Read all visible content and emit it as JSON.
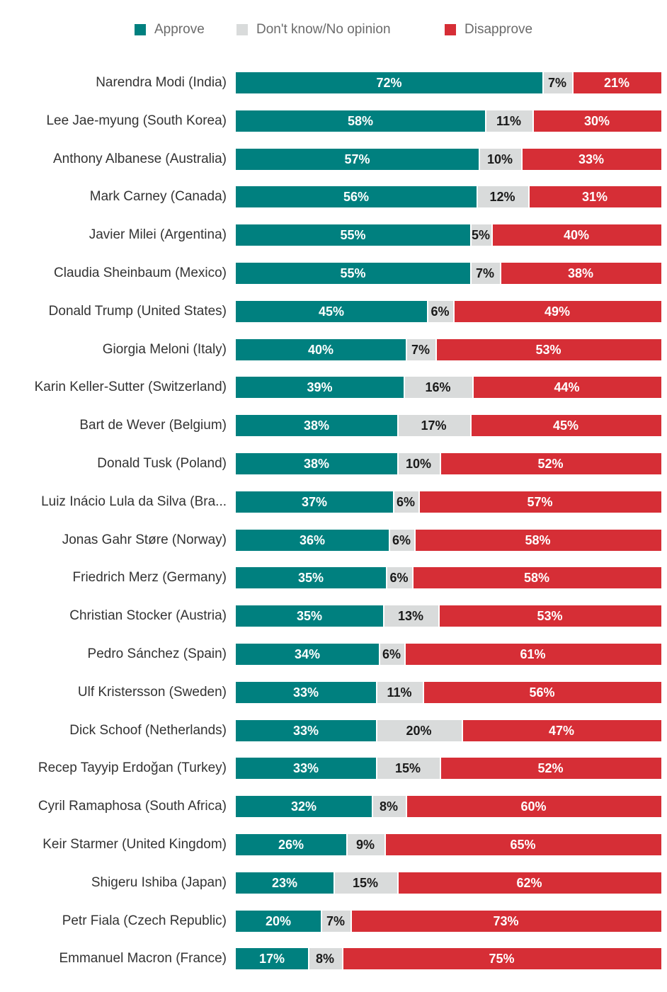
{
  "legend": [
    {
      "label": "Approve",
      "color": "#00807f"
    },
    {
      "label": "Don't know/No opinion",
      "color": "#d9dbdb"
    },
    {
      "label": "Disapprove",
      "color": "#d62e36"
    }
  ],
  "chart_data": {
    "type": "bar",
    "orientation": "horizontal",
    "stacked": true,
    "unit": "%",
    "categories": [
      "Narendra Modi (India)",
      "Lee Jae-myung (South Korea)",
      "Anthony Albanese (Australia)",
      "Mark Carney (Canada)",
      "Javier Milei (Argentina)",
      "Claudia Sheinbaum (Mexico)",
      "Donald Trump (United States)",
      "Giorgia Meloni (Italy)",
      "Karin Keller-Sutter (Switzerland)",
      "Bart de Wever (Belgium)",
      "Donald Tusk (Poland)",
      "Luiz Inácio Lula da Silva (Bra...",
      "Jonas Gahr Støre (Norway)",
      "Friedrich Merz (Germany)",
      "Christian Stocker (Austria)",
      "Pedro Sánchez (Spain)",
      "Ulf Kristersson (Sweden)",
      "Dick Schoof (Netherlands)",
      "Recep Tayyip Erdoğan (Turkey)",
      "Cyril Ramaphosa (South Africa)",
      "Keir Starmer (United Kingdom)",
      "Shigeru Ishiba (Japan)",
      "Petr Fiala (Czech Republic)",
      "Emmanuel Macron (France)"
    ],
    "series": [
      {
        "name": "Approve",
        "color": "#00807f",
        "label_color": "#ffffff",
        "values": [
          72,
          58,
          57,
          56,
          55,
          55,
          45,
          40,
          39,
          38,
          38,
          37,
          36,
          35,
          35,
          34,
          33,
          33,
          33,
          32,
          26,
          23,
          20,
          17
        ]
      },
      {
        "name": "Don't know/No opinion",
        "color": "#d9dbdb",
        "label_color": "#1a1a1a",
        "values": [
          7,
          11,
          10,
          12,
          5,
          7,
          6,
          7,
          16,
          17,
          10,
          6,
          6,
          6,
          13,
          6,
          11,
          20,
          15,
          8,
          9,
          15,
          7,
          8
        ]
      },
      {
        "name": "Disapprove",
        "color": "#d62e36",
        "label_color": "#ffffff",
        "values": [
          21,
          30,
          33,
          31,
          40,
          38,
          49,
          53,
          44,
          45,
          52,
          57,
          58,
          58,
          53,
          61,
          56,
          47,
          52,
          60,
          65,
          62,
          73,
          75
        ]
      }
    ],
    "xlim": [
      0,
      100
    ]
  }
}
